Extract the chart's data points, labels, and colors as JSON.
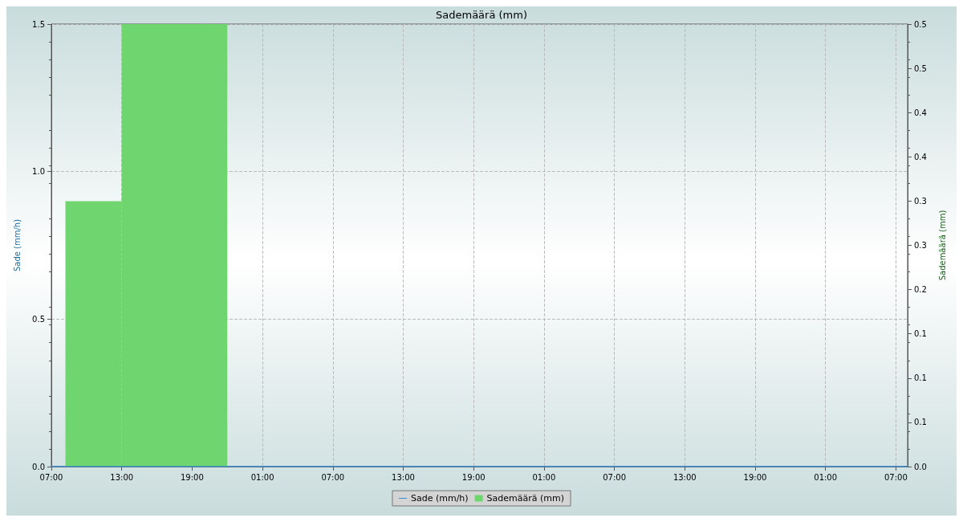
{
  "chart_data": {
    "type": "histogram",
    "title": "Sademäärä (mm)",
    "ylabel": "Sade (mm/h)",
    "y2label": "Sademäärä (mm)",
    "xlim": [
      "--01-01T07:00",
      "--01-04T08:00"
    ],
    "xticks": [
      {
        "value": "--01-01T07:00",
        "label": "07:00"
      },
      {
        "value": "--01-01T13:00",
        "label": "13:00"
      },
      {
        "value": "--01-01T19:00",
        "label": "19:00"
      },
      {
        "value": "--01-02T01:00",
        "label": "01:00"
      },
      {
        "value": "--01-02T07:00",
        "label": "07:00"
      },
      {
        "value": "--01-02T13:00",
        "label": "13:00"
      },
      {
        "value": "--01-02T19:00",
        "label": "19:00"
      },
      {
        "value": "--01-03T01:00",
        "label": "01:00"
      },
      {
        "value": "--01-03T07:00",
        "label": "07:00"
      },
      {
        "value": "--01-03T13:00",
        "label": "13:00"
      },
      {
        "value": "--01-03T19:00",
        "label": "19:00"
      },
      {
        "value": "--01-04T01:00",
        "label": "01:00"
      },
      {
        "value": "--01-04T07:00",
        "label": "07:00"
      }
    ],
    "ylim": [
      0,
      1.5
    ],
    "yticks": [
      {
        "value": 0,
        "label": "0.0"
      },
      {
        "value": 0.5,
        "label": "0.5"
      },
      {
        "value": 1,
        "label": "1.0"
      },
      {
        "value": 1.5,
        "label": "1.5"
      }
    ],
    "y2lim": [
      0,
      0.5
    ],
    "y2ticks": [
      {
        "value": 0,
        "label": "0.0"
      },
      {
        "value": 0.05,
        "label": "0.1"
      },
      {
        "value": 0.1,
        "label": "0.1"
      },
      {
        "value": 0.15,
        "label": "0.1"
      },
      {
        "value": 0.2,
        "label": "0.2"
      },
      {
        "value": 0.25,
        "label": "0.3"
      },
      {
        "value": 0.3,
        "label": "0.3"
      },
      {
        "value": 0.35,
        "label": "0.4"
      },
      {
        "value": 0.4,
        "label": "0.4"
      },
      {
        "value": 0.45,
        "label": "0.5"
      },
      {
        "value": 0.5,
        "label": "0.5"
      }
    ],
    "series": [
      {
        "name": "Sade (mm/h)",
        "type": "line",
        "color": "#3b8fd4",
        "x": [
          "--01-01T07:00",
          "--01-04T08:00"
        ],
        "values": [
          0,
          0
        ]
      },
      {
        "name": "Sademäärä (mm)",
        "axis": "y2",
        "color": "#6fd66f",
        "bins": [
          "--01-01T08:12",
          "--01-01T13:00",
          "--01-01T22:00"
        ],
        "values": [
          0.3,
          0.5
        ]
      }
    ],
    "grid": true,
    "legend": "bottom"
  }
}
